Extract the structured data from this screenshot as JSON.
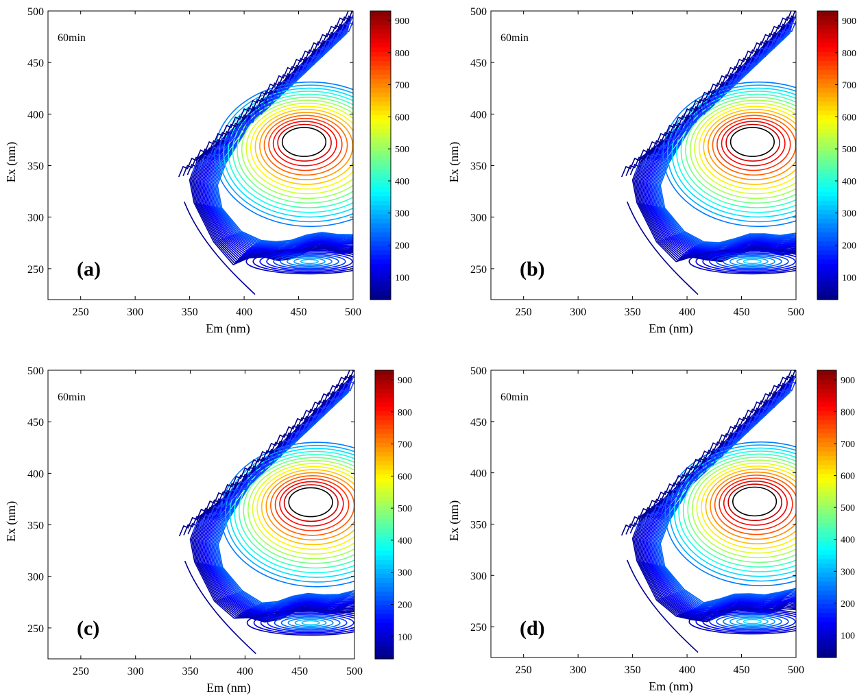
{
  "chart_data": [
    {
      "type": "contour",
      "panel_label": "(a)",
      "annotation": "60min",
      "xlabel": "Em (nm)",
      "ylabel": "Ex (nm)",
      "xlim": [
        220,
        500
      ],
      "ylim": [
        220,
        500
      ],
      "xticks": [
        250,
        300,
        350,
        400,
        450,
        500
      ],
      "yticks": [
        250,
        300,
        350,
        400,
        450,
        500
      ],
      "colorbar": {
        "range": [
          30,
          930
        ],
        "ticks": [
          100,
          200,
          300,
          400,
          500,
          600,
          700,
          800,
          900
        ]
      },
      "peaks": [
        {
          "em": 455,
          "ex": 373,
          "intensity": 900
        },
        {
          "em": 460,
          "ex": 257,
          "intensity": 300
        }
      ]
    },
    {
      "type": "contour",
      "panel_label": "(b)",
      "annotation": "60min",
      "xlabel": "Em (nm)",
      "ylabel": "Ex (nm)",
      "xlim": [
        220,
        500
      ],
      "ylim": [
        220,
        500
      ],
      "xticks": [
        250,
        300,
        350,
        400,
        450,
        500
      ],
      "yticks": [
        250,
        300,
        350,
        400,
        450,
        500
      ],
      "colorbar": {
        "range": [
          30,
          930
        ],
        "ticks": [
          100,
          200,
          300,
          400,
          500,
          600,
          700,
          800,
          900
        ]
      },
      "peaks": [
        {
          "em": 460,
          "ex": 373,
          "intensity": 910
        },
        {
          "em": 460,
          "ex": 257,
          "intensity": 320
        }
      ]
    },
    {
      "type": "contour",
      "panel_label": "(c)",
      "annotation": "60min",
      "xlabel": "Em (nm)",
      "ylabel": "Ex (nm)",
      "xlim": [
        220,
        500
      ],
      "ylim": [
        220,
        500
      ],
      "xticks": [
        250,
        300,
        350,
        400,
        450,
        500
      ],
      "yticks": [
        250,
        300,
        350,
        400,
        450,
        500
      ],
      "colorbar": {
        "range": [
          30,
          930
        ],
        "ticks": [
          100,
          200,
          300,
          400,
          500,
          600,
          700,
          800,
          900
        ]
      },
      "peaks": [
        {
          "em": 460,
          "ex": 372,
          "intensity": 910
        },
        {
          "em": 460,
          "ex": 255,
          "intensity": 320
        }
      ]
    },
    {
      "type": "contour",
      "panel_label": "(d)",
      "annotation": "60min",
      "xlabel": "Em (nm)",
      "ylabel": "Ex (nm)",
      "xlim": [
        220,
        500
      ],
      "ylim": [
        220,
        500
      ],
      "xticks": [
        250,
        300,
        350,
        400,
        450,
        500
      ],
      "yticks": [
        250,
        300,
        350,
        400,
        450,
        500
      ],
      "colorbar": {
        "range": [
          30,
          930
        ],
        "ticks": [
          100,
          200,
          300,
          400,
          500,
          600,
          700,
          800,
          900
        ]
      },
      "peaks": [
        {
          "em": 462,
          "ex": 372,
          "intensity": 920
        },
        {
          "em": 460,
          "ex": 255,
          "intensity": 330
        }
      ]
    }
  ]
}
